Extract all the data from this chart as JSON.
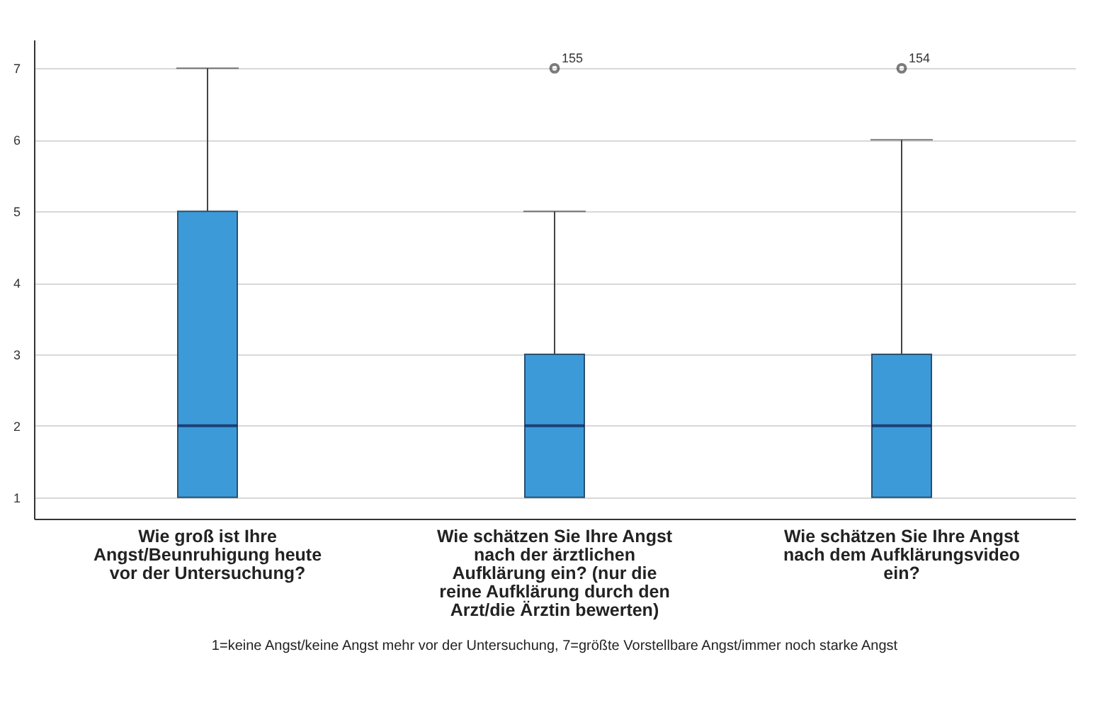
{
  "chart_data": {
    "type": "box",
    "categories": [
      "Wie groß ist Ihre Angst/Beunruhigung heute vor der Untersuchung?",
      "Wie schätzen Sie Ihre Angst nach der ärztlichen Aufklärung ein? (nur die reine Aufklärung durch den Arzt/die Ärztin bewerten)",
      "Wie schätzen Sie Ihre Angst nach dem Aufklärungsvideo ein?"
    ],
    "boxes": [
      {
        "low": 1,
        "q1": 1,
        "median": 2,
        "q3": 5,
        "high": 7
      },
      {
        "low": 1,
        "q1": 1,
        "median": 2,
        "q3": 3,
        "high": 5,
        "outliers": [
          7
        ]
      },
      {
        "low": 1,
        "q1": 1,
        "median": 2,
        "q3": 3,
        "high": 6,
        "outliers": [
          7
        ]
      }
    ],
    "color": "#3d9ad9",
    "ylim": [
      0.7,
      7.4
    ],
    "yticks": [
      1,
      2,
      3,
      4,
      5,
      6,
      7
    ],
    "grid": "y",
    "annotations": [
      "155",
      "154",
      "1=keine Angst/keine Angst mehr vor der Untersuchung, 7=größte Vorstellbare Angst/immer noch starke Angst"
    ]
  }
}
